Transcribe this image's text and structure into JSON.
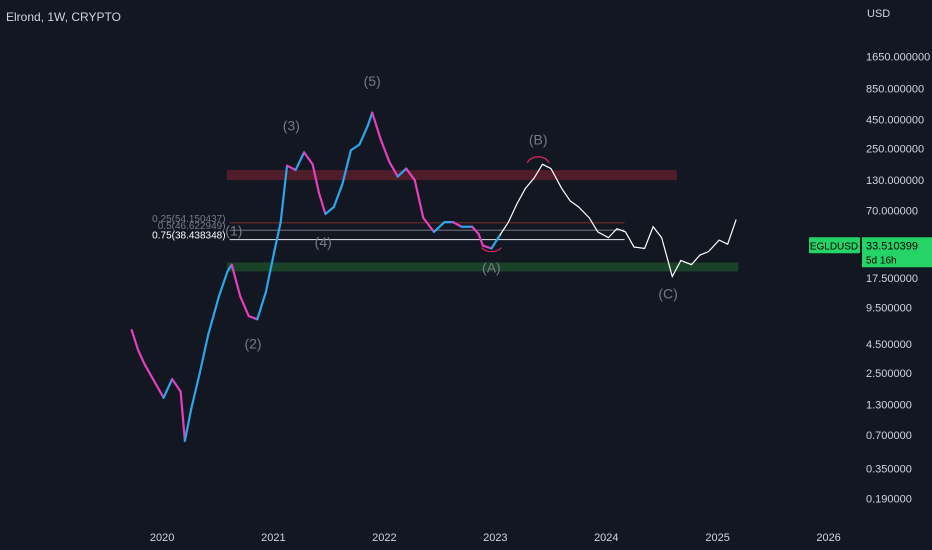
{
  "header": {
    "symbol_line": "Elrond, 1W, CRYPTO"
  },
  "axis": {
    "unit": "USD"
  },
  "colors": {
    "background": "#131722",
    "bull": "#2ba6e8",
    "bear": "#e43fbf",
    "projection": "#ffffff",
    "resistance_zone": "#5a1f2c",
    "support_zone": "#1b4a2a",
    "price_tag": "#25d366",
    "wave_label": "#787b86",
    "peak_arc": "#e0245e"
  },
  "chart_data": {
    "type": "line",
    "title": "Elrond, 1W, CRYPTO",
    "xlabel": "",
    "ylabel": "USD",
    "scale": "log",
    "ylim": [
      0.15,
      2400
    ],
    "x_ticks": [
      "2020",
      "2021",
      "2022",
      "2023",
      "2024",
      "2025",
      "2026"
    ],
    "y_ticks": [
      "1650.000000",
      "850.000000",
      "450.000000",
      "250.000000",
      "130.000000",
      "70.000000",
      "17.500000",
      "9.500000",
      "4.500000",
      "2.500000",
      "1.300000",
      "0.700000",
      "0.350000",
      "0.190000"
    ],
    "price_tag": {
      "symbol": "EGLDUSD",
      "value": "33.510399",
      "countdown": "5d 16h"
    },
    "series": [
      {
        "name": "EGLDUSD",
        "points": [
          [
            "2019-09-23",
            6.0
          ],
          [
            "2019-10-14",
            4.0
          ],
          [
            "2019-11-04",
            3.0
          ],
          [
            "2019-12-02",
            2.2
          ],
          [
            "2020-01-06",
            1.5
          ],
          [
            "2020-02-03",
            2.2
          ],
          [
            "2020-03-02",
            1.7
          ],
          [
            "2020-03-16",
            0.62
          ],
          [
            "2020-04-06",
            1.2
          ],
          [
            "2020-05-04",
            2.5
          ],
          [
            "2020-06-01",
            5.5
          ],
          [
            "2020-07-06",
            12.0
          ],
          [
            "2020-08-03",
            20.0
          ],
          [
            "2020-08-17",
            23.0
          ],
          [
            "2020-09-14",
            12.0
          ],
          [
            "2020-10-12",
            8.0
          ],
          [
            "2020-11-09",
            7.5
          ],
          [
            "2020-12-07",
            13.0
          ],
          [
            "2021-01-04",
            30.0
          ],
          [
            "2021-01-25",
            55.0
          ],
          [
            "2021-02-15",
            175.0
          ],
          [
            "2021-03-15",
            160.0
          ],
          [
            "2021-04-12",
            230.0
          ],
          [
            "2021-05-10",
            180.0
          ],
          [
            "2021-05-31",
            100.0
          ],
          [
            "2021-06-21",
            65.0
          ],
          [
            "2021-07-19",
            75.0
          ],
          [
            "2021-08-16",
            120.0
          ],
          [
            "2021-09-13",
            240.0
          ],
          [
            "2021-10-11",
            270.0
          ],
          [
            "2021-11-08",
            400.0
          ],
          [
            "2021-11-22",
            520.0
          ],
          [
            "2021-12-20",
            300.0
          ],
          [
            "2022-01-17",
            190.0
          ],
          [
            "2022-02-14",
            140.0
          ],
          [
            "2022-03-14",
            165.0
          ],
          [
            "2022-04-11",
            130.0
          ],
          [
            "2022-05-09",
            60.0
          ],
          [
            "2022-06-13",
            45.0
          ],
          [
            "2022-07-18",
            55.0
          ],
          [
            "2022-08-15",
            55.0
          ],
          [
            "2022-09-12",
            50.0
          ],
          [
            "2022-10-17",
            50.0
          ],
          [
            "2022-11-07",
            43.0
          ],
          [
            "2022-11-21",
            34.0
          ],
          [
            "2022-12-19",
            32.0
          ],
          [
            "2023-01-16",
            42.0
          ]
        ]
      },
      {
        "name": "projection",
        "points": [
          [
            "2023-01-16",
            42.0
          ],
          [
            "2023-02-13",
            55.0
          ],
          [
            "2023-03-13",
            80.0
          ],
          [
            "2023-04-10",
            110.0
          ],
          [
            "2023-05-08",
            135.0
          ],
          [
            "2023-06-05",
            180.0
          ],
          [
            "2023-07-03",
            165.0
          ],
          [
            "2023-08-07",
            110.0
          ],
          [
            "2023-09-04",
            85.0
          ],
          [
            "2023-10-02",
            75.0
          ],
          [
            "2023-11-06",
            60.0
          ],
          [
            "2023-12-04",
            45.0
          ],
          [
            "2024-01-08",
            40.0
          ],
          [
            "2024-02-05",
            48.0
          ],
          [
            "2024-03-04",
            45.0
          ],
          [
            "2024-04-01",
            33.0
          ],
          [
            "2024-05-06",
            32.0
          ],
          [
            "2024-06-03",
            50.0
          ],
          [
            "2024-07-01",
            40.0
          ],
          [
            "2024-08-05",
            18.0
          ],
          [
            "2024-09-02",
            25.0
          ],
          [
            "2024-10-07",
            23.0
          ],
          [
            "2024-11-04",
            28.0
          ],
          [
            "2024-12-02",
            30.0
          ],
          [
            "2025-01-06",
            38.0
          ],
          [
            "2025-02-03",
            35.0
          ],
          [
            "2025-03-03",
            58.0
          ]
        ]
      }
    ],
    "wave_labels": [
      {
        "text": "(3)",
        "date": "2021-03-01",
        "price": 360
      },
      {
        "text": "(5)",
        "date": "2021-11-22",
        "price": 900
      },
      {
        "text": "(4)",
        "date": "2021-06-14",
        "price": 33
      },
      {
        "text": "(2)",
        "date": "2020-10-26",
        "price": 4.1
      },
      {
        "text": "(1)",
        "date": "2020-08-24",
        "price": 42
      },
      {
        "text": "(A)",
        "date": "2022-12-19",
        "price": 19.5
      },
      {
        "text": "(B)",
        "date": "2023-05-22",
        "price": 270
      },
      {
        "text": "(C)",
        "date": "2024-07-22",
        "price": 11.5
      }
    ],
    "fib_levels": [
      {
        "label": "0.25(54.150437)",
        "price": 54.150437
      },
      {
        "label": "0.5(46.622949)",
        "price": 46.622949
      },
      {
        "label": "0.75(38.438348)",
        "price": 38.438348
      }
    ],
    "zones": [
      {
        "name": "resistance",
        "from": 130,
        "to": 160,
        "start": "2020-08-01",
        "end": "2024-08-20"
      },
      {
        "name": "support",
        "from": 20,
        "to": 24,
        "start": "2020-08-01",
        "end": "2025-03-10"
      }
    ]
  }
}
